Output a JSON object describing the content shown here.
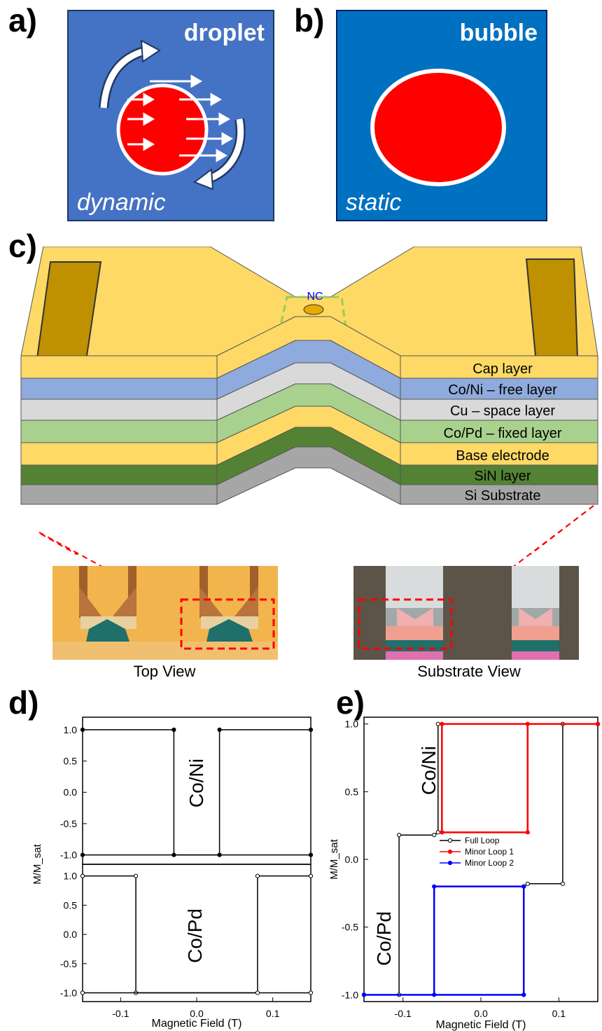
{
  "panels": {
    "a": {
      "letter": "a)",
      "title": "droplet",
      "subtitle": "dynamic",
      "bg": "#4472c4",
      "spot": "#ff0000"
    },
    "b": {
      "letter": "b)",
      "title": "bubble",
      "subtitle": "static",
      "bg": "#0070c0",
      "spot": "#ff0000"
    },
    "c": {
      "letter": "c)",
      "nc_label": "NC",
      "layers": [
        {
          "label": "Cap layer",
          "color": "#ffd966"
        },
        {
          "label": "Co/Ni – free layer",
          "color": "#8faadc"
        },
        {
          "label": "Cu – space layer",
          "color": "#d9d9d9"
        },
        {
          "label": "Co/Pd – fixed layer",
          "color": "#a9d18e"
        },
        {
          "label": "Base electrode",
          "color": "#ffd966"
        },
        {
          "label": "SiN layer",
          "color": "#548235"
        },
        {
          "label": "Si Substrate",
          "color": "#a6a6a6"
        }
      ],
      "top_view_caption": "Top View",
      "substrate_view_caption": "Substrate View"
    },
    "d": {
      "letter": "d)"
    },
    "e": {
      "letter": "e)"
    }
  },
  "chart_data": [
    {
      "type": "line",
      "panel": "d-top",
      "label": "Co/Ni",
      "ylabel": "M/M_sat",
      "xlim": [
        -0.15,
        0.15
      ],
      "ylim": [
        -1.15,
        1.2
      ],
      "yticks": [
        -1.0,
        -0.5,
        0.0,
        0.5,
        1.0
      ],
      "ytick_labels": [
        "-1.0",
        "-0.5",
        "0.0",
        "0.5",
        "1.0"
      ],
      "series": [
        {
          "values_x": [
            -0.15,
            -0.03,
            -0.03,
            0.15
          ],
          "values_y": [
            1.0,
            1.0,
            -1.0,
            -1.0
          ]
        },
        {
          "values_x": [
            -0.15,
            0.03,
            0.03,
            0.15
          ],
          "values_y": [
            -1.0,
            -1.0,
            1.0,
            1.0
          ]
        }
      ]
    },
    {
      "type": "line",
      "panel": "d-bottom",
      "label": "Co/Pd",
      "xlabel": "Magnetic Field (T)",
      "xlim": [
        -0.15,
        0.15
      ],
      "xticks": [
        -0.1,
        0.0,
        0.1
      ],
      "xtick_labels": [
        "-0.1",
        "0.0",
        "0.1"
      ],
      "ylim": [
        -1.15,
        1.2
      ],
      "yticks": [
        -1.0,
        -0.5,
        0.0,
        0.5,
        1.0
      ],
      "ytick_labels": [
        "-1.0",
        "-0.5",
        "0.0",
        "0.5",
        "1.0"
      ],
      "series": [
        {
          "values_x": [
            -0.15,
            -0.08,
            -0.08,
            0.15
          ],
          "values_y": [
            1.0,
            1.0,
            -1.0,
            -1.0
          ]
        },
        {
          "values_x": [
            -0.15,
            0.08,
            0.08,
            0.15
          ],
          "values_y": [
            -1.0,
            -1.0,
            1.0,
            1.0
          ]
        }
      ]
    },
    {
      "type": "line",
      "panel": "e",
      "xlabel": "Magnetic Field (T)",
      "ylabel": "M/M_sat",
      "labels": [
        "Co/Ni",
        "Co/Pd"
      ],
      "xlim": [
        -0.15,
        0.15
      ],
      "xticks": [
        -0.1,
        0.0,
        0.1
      ],
      "xtick_labels": [
        "-0.1",
        "0.0",
        "0.1"
      ],
      "ylim": [
        -1.05,
        1.05
      ],
      "yticks": [
        -1.0,
        -0.5,
        0.0,
        0.5,
        1.0
      ],
      "ytick_labels": [
        "-1.0",
        "-0.5",
        "0.0",
        "0.5",
        "1.0"
      ],
      "legend_position": "center",
      "series": [
        {
          "name": "Full Loop",
          "color": "#000000",
          "values_x": [
            -0.15,
            -0.105,
            -0.105,
            -0.06,
            -0.055,
            -0.055,
            0.15,
            0.15,
            0.105,
            0.105,
            0.06,
            0.055,
            0.055,
            -0.15
          ],
          "values_y": [
            -1.0,
            -1.0,
            0.18,
            0.18,
            0.2,
            1.0,
            1.0,
            1.0,
            1.0,
            -0.18,
            -0.18,
            -0.2,
            -1.0,
            -1.0
          ]
        },
        {
          "name": "Minor Loop 1",
          "color": "#ff0000",
          "values_x": [
            -0.05,
            -0.05,
            0.15,
            0.06,
            0.06,
            -0.05
          ],
          "values_y": [
            0.2,
            1.0,
            1.0,
            1.0,
            0.2,
            0.2
          ]
        },
        {
          "name": "Minor Loop 2",
          "color": "#0000ff",
          "values_x": [
            -0.15,
            -0.06,
            -0.06,
            0.055,
            0.055,
            0.055,
            -0.15
          ],
          "values_y": [
            -1.0,
            -1.0,
            -0.2,
            -0.2,
            -0.2,
            -1.0,
            -1.0
          ]
        }
      ]
    }
  ]
}
